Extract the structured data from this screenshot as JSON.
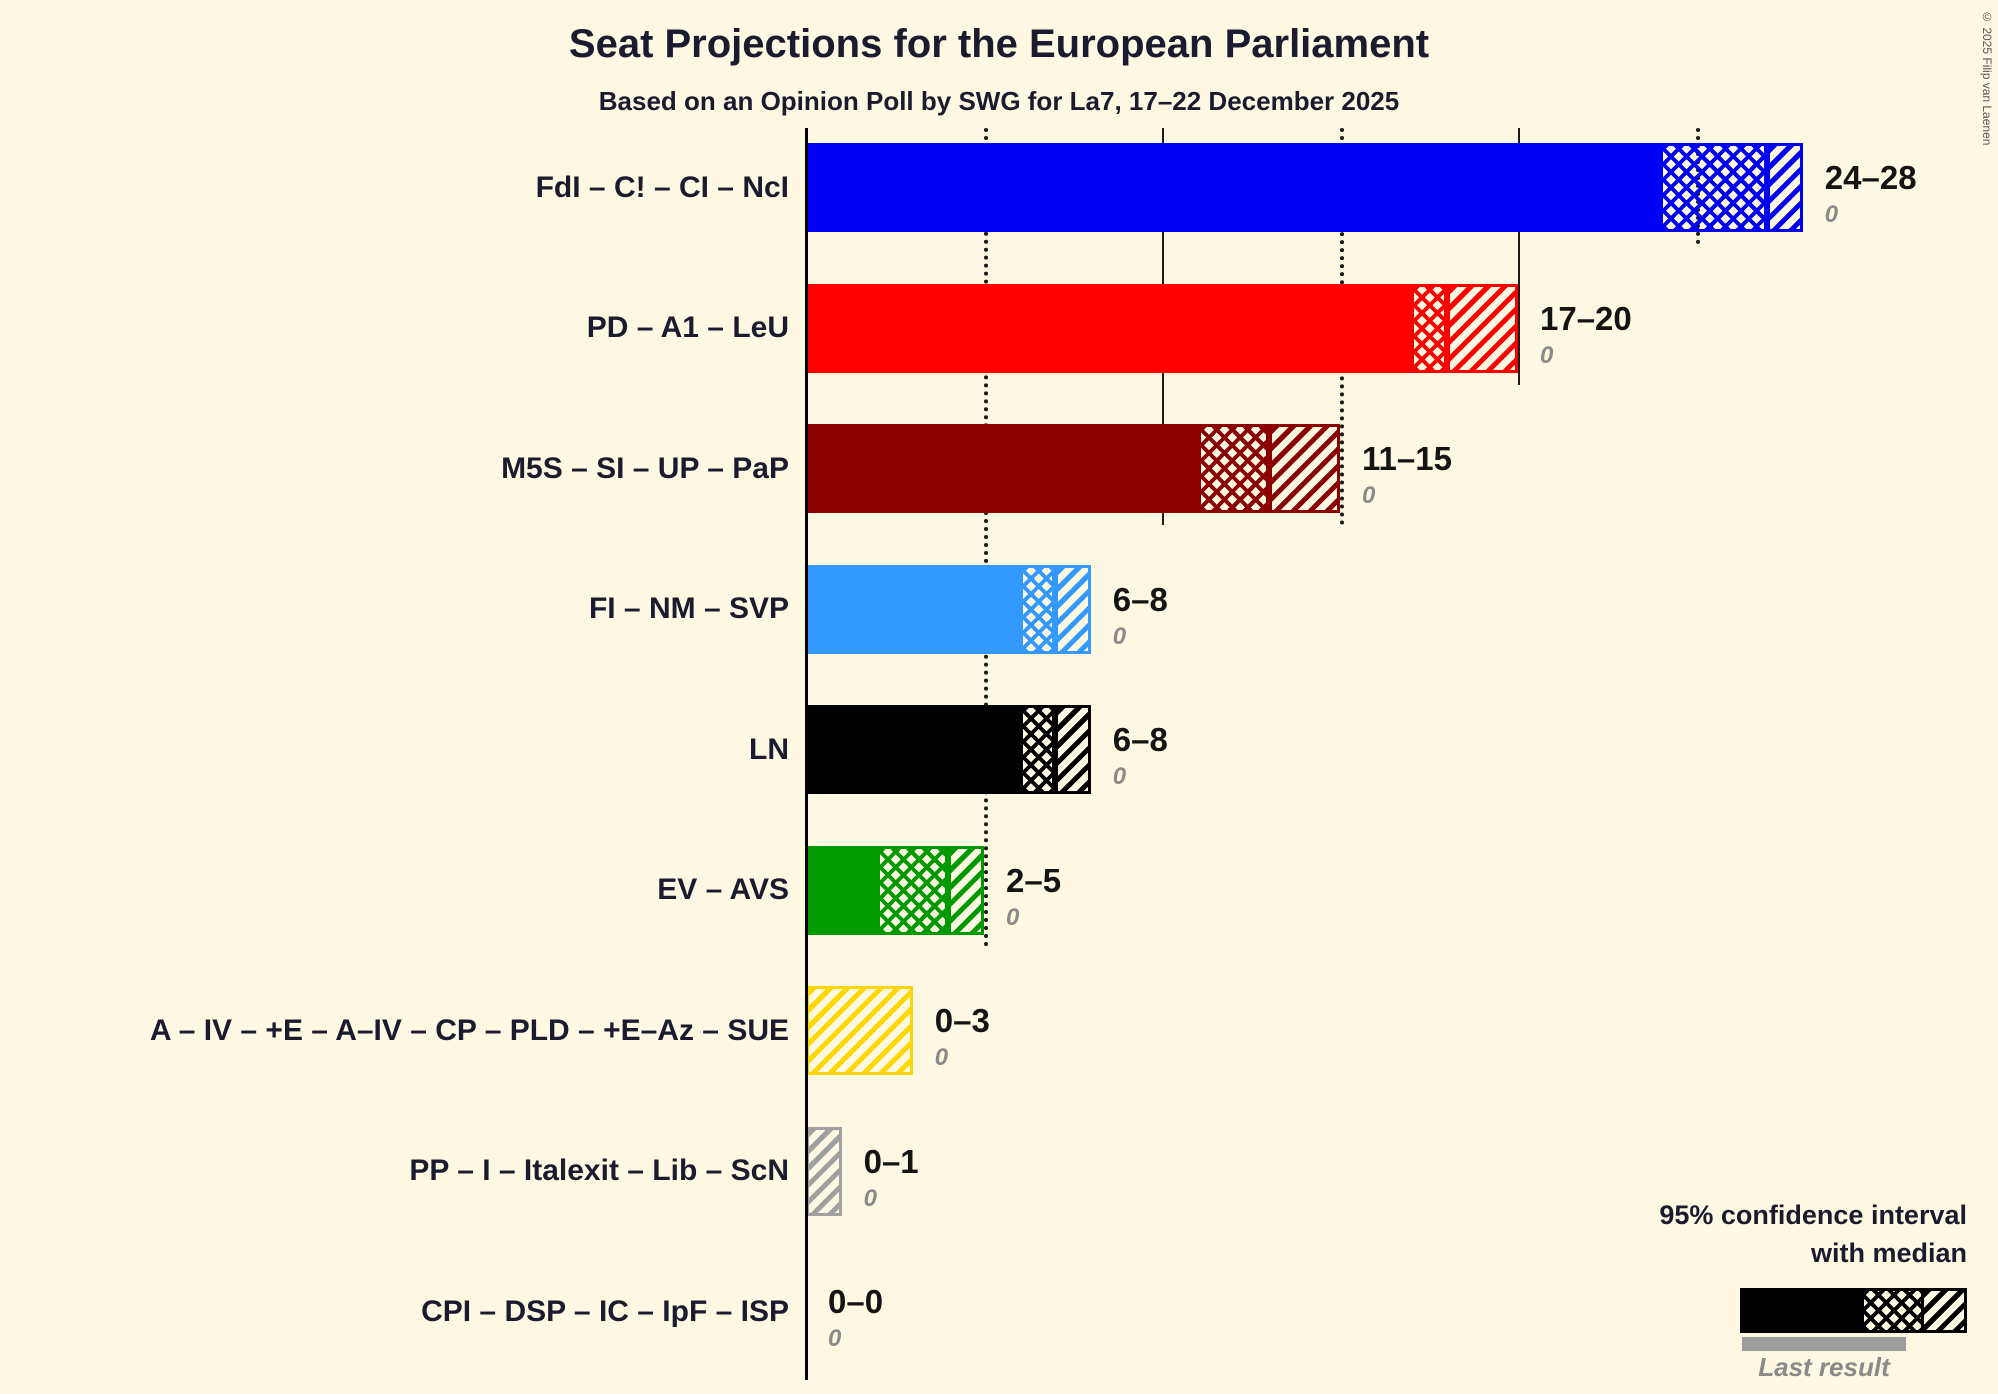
{
  "title": "Seat Projections for the European Parliament",
  "subtitle": "Based on an Opinion Poll by SWG for La7, 17–22 December 2025",
  "copyright": "© 2025 Filip van Laenen",
  "legend": {
    "ci_line1": "95% confidence interval",
    "ci_line2": "with median",
    "last_result_label": "Last result"
  },
  "colors": {
    "background": "#FCF8E2",
    "text": "#1B1B30",
    "muted": "#8A8A8A"
  },
  "chart_data": {
    "type": "bar",
    "orientation": "horizontal",
    "unit": "seats",
    "x_axis": {
      "min": 0,
      "max": 28,
      "gridlines": [
        {
          "value": 5,
          "style": "dotted"
        },
        {
          "value": 10,
          "style": "solid"
        },
        {
          "value": 15,
          "style": "dotted"
        },
        {
          "value": 20,
          "style": "solid"
        },
        {
          "value": 25,
          "style": "dotted"
        }
      ]
    },
    "bars": [
      {
        "label": "FdI – C! – CI – NcI",
        "ci_low": 24,
        "median": 27,
        "ci_high": 28,
        "range_label": "24–28",
        "last_result": "0",
        "color": "#0000F5"
      },
      {
        "label": "PD – A1 – LeU",
        "ci_low": 17,
        "median": 18,
        "ci_high": 20,
        "range_label": "17–20",
        "last_result": "0",
        "color": "#FF0000"
      },
      {
        "label": "M5S – SI – UP – PaP",
        "ci_low": 11,
        "median": 13,
        "ci_high": 15,
        "range_label": "11–15",
        "last_result": "0",
        "color": "#8B0000"
      },
      {
        "label": "FI – NM – SVP",
        "ci_low": 6,
        "median": 7,
        "ci_high": 8,
        "range_label": "6–8",
        "last_result": "0",
        "color": "#3399FF"
      },
      {
        "label": "LN",
        "ci_low": 6,
        "median": 7,
        "ci_high": 8,
        "range_label": "6–8",
        "last_result": "0",
        "color": "#000000"
      },
      {
        "label": "EV – AVS",
        "ci_low": 2,
        "median": 4,
        "ci_high": 5,
        "range_label": "2–5",
        "last_result": "0",
        "color": "#009900"
      },
      {
        "label": "A – IV – +E – A–IV – CP – PLD – +E–Az – SUE",
        "ci_low": 0,
        "median": 0,
        "ci_high": 3,
        "range_label": "0–3",
        "last_result": "0",
        "color": "#FFD700"
      },
      {
        "label": "PP – I – Italexit – Lib – ScN",
        "ci_low": 0,
        "median": 0,
        "ci_high": 1,
        "range_label": "0–1",
        "last_result": "0",
        "color": "#A0A0A0"
      },
      {
        "label": "CPI – DSP – IC – IpF – ISP",
        "ci_low": 0,
        "median": 0,
        "ci_high": 0,
        "range_label": "0–0",
        "last_result": "0",
        "color": "#000000"
      }
    ]
  }
}
